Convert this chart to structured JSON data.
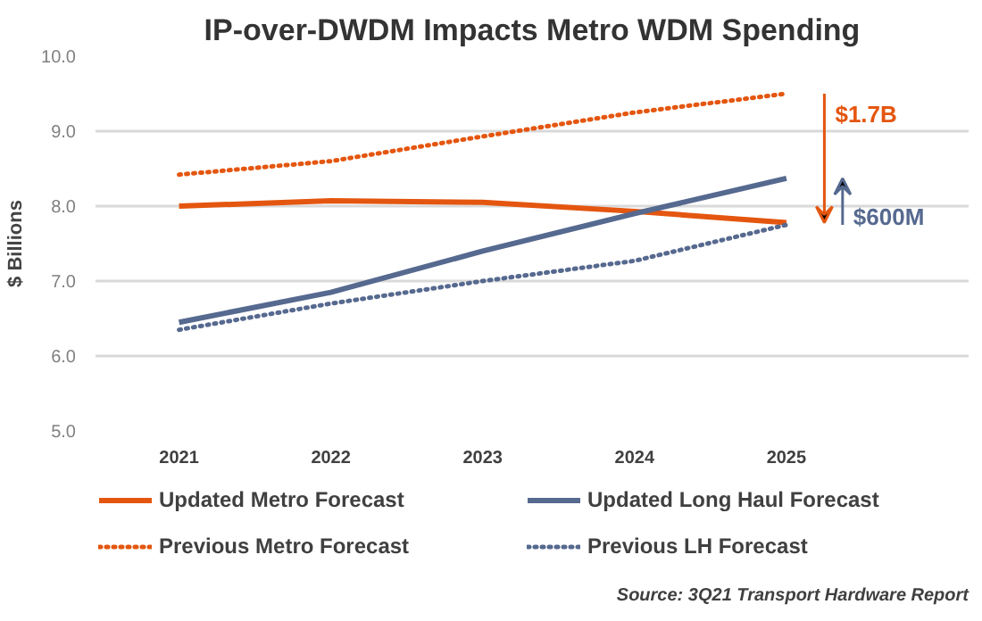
{
  "chart_data": {
    "type": "line",
    "title": "IP-over-DWDM Impacts Metro WDM Spending",
    "ylabel": "$ Billions",
    "categories": [
      "2021",
      "2022",
      "2023",
      "2024",
      "2025"
    ],
    "series": [
      {
        "name": "Updated Metro Forecast",
        "color": "#e4560f",
        "values": [
          8.0,
          8.07,
          8.05,
          7.93,
          7.78
        ],
        "line_style": "solid"
      },
      {
        "name": "Updated Long Haul Forecast",
        "color": "#56698f",
        "values": [
          6.45,
          6.85,
          7.4,
          7.9,
          8.37
        ],
        "line_style": "solid"
      },
      {
        "name": "Previous Metro Forecast",
        "color": "#e4560f",
        "values": [
          8.42,
          8.6,
          8.93,
          9.25,
          9.5
        ],
        "line_style": "dotted"
      },
      {
        "name": "Previous LH Forecast",
        "color": "#56698f",
        "values": [
          6.35,
          6.7,
          7.0,
          7.27,
          7.75
        ],
        "line_style": "dotted"
      }
    ],
    "ylim": [
      5.0,
      10.0
    ],
    "yticks": [
      {
        "value": 5,
        "label": "5.0"
      },
      {
        "value": 6,
        "label": "6.0"
      },
      {
        "value": 7,
        "label": "7.0"
      },
      {
        "value": 8,
        "label": "8.0"
      },
      {
        "value": 9,
        "label": "9.0"
      },
      {
        "value": 10,
        "label": "10.0"
      }
    ],
    "grid": "y",
    "legend": "bottom",
    "marker": "none",
    "annotations": [
      "$1.7B",
      "$600M",
      "Source: 3Q21 Transport Hardware Report"
    ]
  }
}
